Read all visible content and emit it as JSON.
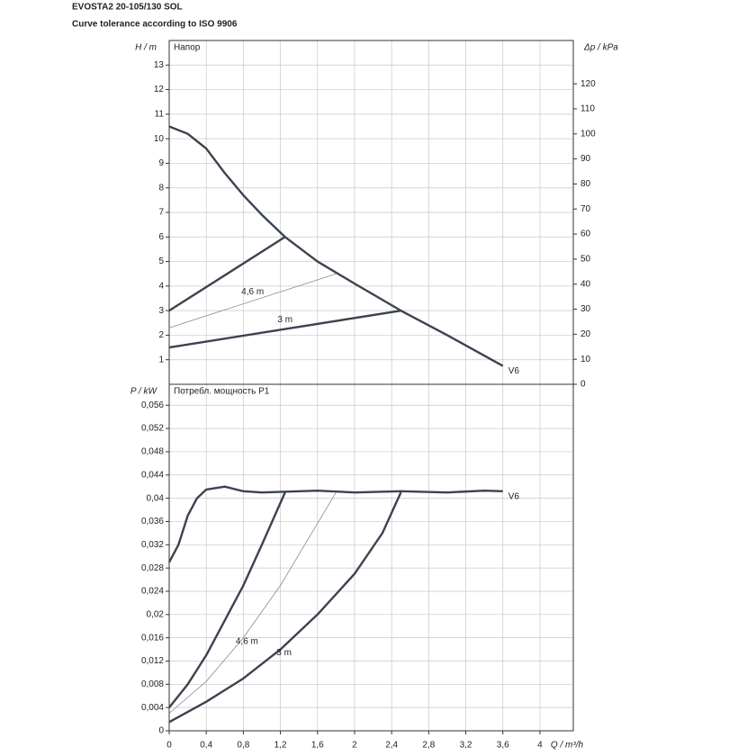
{
  "header": {
    "title": "EVOSTA2 20-105/130 SOL",
    "subtitle": "Curve tolerance according to ISO 9906"
  },
  "chart_data": [
    {
      "type": "line",
      "panel_label": "Напор",
      "ylabel": "H / m",
      "y2label": "Δp / kPa",
      "xlim": [
        0,
        4.36
      ],
      "xticks": [
        0,
        0.4,
        0.8,
        1.2,
        1.6,
        2,
        2.4,
        2.8,
        3.2,
        3.6,
        4
      ],
      "ylim": [
        0,
        14
      ],
      "yticks": [
        1,
        2,
        3,
        4,
        5,
        6,
        7,
        8,
        9,
        10,
        11,
        12,
        13
      ],
      "y2lim": [
        0,
        137.3
      ],
      "y2ticks": [
        0,
        10,
        20,
        30,
        40,
        50,
        60,
        70,
        80,
        90,
        100,
        110,
        120
      ],
      "grid": true,
      "series": [
        {
          "name": "V6",
          "color": "#3b4350",
          "thin": false,
          "x": [
            0,
            0.2,
            0.4,
            0.6,
            0.8,
            1.0,
            1.25,
            1.6,
            2.0,
            2.5,
            3.0,
            3.6
          ],
          "values": [
            10.5,
            10.2,
            9.6,
            8.6,
            7.7,
            6.9,
            6.0,
            5.0,
            4.1,
            3.0,
            2.0,
            0.75
          ]
        },
        {
          "color": "#3b4350",
          "thin": false,
          "x": [
            0,
            1.25
          ],
          "values": [
            3.0,
            6.0
          ]
        },
        {
          "name": "4,6 m",
          "color": "#8a8a8a",
          "thin": true,
          "x": [
            0,
            1.8
          ],
          "values": [
            2.3,
            4.5
          ]
        },
        {
          "name": "3 m",
          "color": "#3b4350",
          "thin": false,
          "x": [
            0,
            2.5
          ],
          "values": [
            1.5,
            3.0
          ]
        }
      ]
    },
    {
      "type": "line",
      "panel_label": "Потребл. мощность P1",
      "ylabel": "P / kW",
      "xlabel": "Q / m³/h",
      "xlim": [
        0,
        4.36
      ],
      "xticks": [
        0,
        {
          "value": 0.4,
          "label": "0,4"
        },
        {
          "value": 0.8,
          "label": "0,8"
        },
        {
          "value": 1.2,
          "label": "1,2"
        },
        {
          "value": 1.6,
          "label": "1,6"
        },
        2,
        {
          "value": 2.4,
          "label": "2,4"
        },
        {
          "value": 2.8,
          "label": "2,8"
        },
        {
          "value": 3.2,
          "label": "3,2"
        },
        {
          "value": 3.6,
          "label": "3,6"
        },
        4
      ],
      "ylim": [
        0,
        0.0596
      ],
      "yticks": [
        0,
        {
          "value": 0.004,
          "label": "0,004"
        },
        {
          "value": 0.008,
          "label": "0,008"
        },
        {
          "value": 0.012,
          "label": "0,012"
        },
        {
          "value": 0.016,
          "label": "0,016"
        },
        {
          "value": 0.02,
          "label": "0,02"
        },
        {
          "value": 0.024,
          "label": "0,024"
        },
        {
          "value": 0.028,
          "label": "0,028"
        },
        {
          "value": 0.032,
          "label": "0,032"
        },
        {
          "value": 0.036,
          "label": "0,036"
        },
        {
          "value": 0.04,
          "label": "0,04"
        },
        {
          "value": 0.044,
          "label": "0,044"
        },
        {
          "value": 0.048,
          "label": "0,048"
        },
        {
          "value": 0.052,
          "label": "0,052"
        },
        {
          "value": 0.056,
          "label": "0,056"
        }
      ],
      "grid": true,
      "series": [
        {
          "name": "V6",
          "color": "#3b4350",
          "thin": false,
          "x": [
            0,
            0.1,
            0.2,
            0.3,
            0.4,
            0.6,
            0.8,
            1.0,
            1.6,
            2.0,
            2.5,
            3.0,
            3.4,
            3.6
          ],
          "values": [
            0.029,
            0.032,
            0.037,
            0.04,
            0.0415,
            0.042,
            0.0412,
            0.041,
            0.0413,
            0.041,
            0.0412,
            0.041,
            0.0413,
            0.0412
          ]
        },
        {
          "color": "#3b4350",
          "thin": false,
          "x": [
            0,
            0.2,
            0.4,
            0.6,
            0.8,
            1.0,
            1.25
          ],
          "values": [
            0.004,
            0.008,
            0.013,
            0.019,
            0.025,
            0.032,
            0.041
          ]
        },
        {
          "name": "4,6 m",
          "color": "#8a8a8a",
          "thin": true,
          "x": [
            0,
            0.4,
            0.8,
            1.2,
            1.5,
            1.8
          ],
          "values": [
            0.003,
            0.0085,
            0.016,
            0.025,
            0.033,
            0.041
          ]
        },
        {
          "name": "3 m",
          "color": "#3b4350",
          "thin": false,
          "x": [
            0,
            0.4,
            0.8,
            1.2,
            1.6,
            2.0,
            2.3,
            2.5
          ],
          "values": [
            0.0015,
            0.005,
            0.009,
            0.014,
            0.02,
            0.027,
            0.034,
            0.041
          ]
        }
      ]
    }
  ]
}
